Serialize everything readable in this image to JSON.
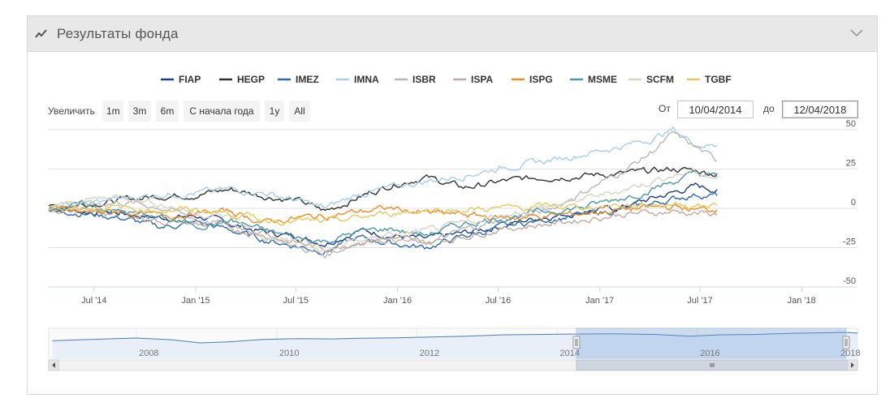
{
  "panel": {
    "title": "Результаты фонда",
    "header_icon": "line-chart-icon",
    "collapse_icon": "chevron-down-icon"
  },
  "range_selector": {
    "zoom_label": "Увеличить",
    "buttons": [
      "1m",
      "3m",
      "6m",
      "С начала года",
      "1y",
      "All"
    ],
    "from_label": "От",
    "from_value": "10/04/2014",
    "to_label": "до",
    "to_value": "12/04/2018"
  },
  "chart_data": {
    "type": "line",
    "x_range": [
      "2014-04-10",
      "2018-04-12"
    ],
    "x_ticks": [
      "Jul '14",
      "Jan '15",
      "Jul '15",
      "Jan '16",
      "Jul '16",
      "Jan '17",
      "Jul '17",
      "Jan '18"
    ],
    "x_tick_dates": [
      "2014-07-01",
      "2015-01-01",
      "2015-07-01",
      "2016-01-01",
      "2016-07-01",
      "2017-01-01",
      "2017-07-01",
      "2018-01-01"
    ],
    "y_ticks": [
      50,
      25,
      0,
      -25,
      -50
    ],
    "ylim": [
      -50,
      50
    ],
    "grid": true,
    "legend_position": "top",
    "series": [
      {
        "name": "FIAP",
        "color": "#1f3c88",
        "values": [
          [
            0,
            0
          ],
          [
            60,
            -2
          ],
          [
            130,
            -3
          ],
          [
            200,
            -6
          ],
          [
            270,
            -5
          ],
          [
            330,
            -10
          ],
          [
            390,
            -15
          ],
          [
            450,
            -18
          ],
          [
            500,
            -22
          ],
          [
            560,
            -14
          ],
          [
            620,
            -17
          ],
          [
            680,
            -20
          ],
          [
            750,
            -16
          ],
          [
            820,
            -11
          ],
          [
            900,
            -5
          ],
          [
            970,
            -2
          ],
          [
            1030,
            0
          ],
          [
            1080,
            5
          ],
          [
            1130,
            10
          ],
          [
            1170,
            14
          ],
          [
            1209,
            12
          ]
        ]
      },
      {
        "name": "HEGP",
        "color": "#333333",
        "values": [
          [
            0,
            0
          ],
          [
            60,
            3
          ],
          [
            130,
            5
          ],
          [
            200,
            8
          ],
          [
            270,
            9
          ],
          [
            330,
            12
          ],
          [
            390,
            8
          ],
          [
            450,
            5
          ],
          [
            500,
            -2
          ],
          [
            560,
            7
          ],
          [
            620,
            15
          ],
          [
            680,
            20
          ],
          [
            750,
            13
          ],
          [
            820,
            17
          ],
          [
            900,
            20
          ],
          [
            970,
            21
          ],
          [
            1030,
            22
          ],
          [
            1080,
            23
          ],
          [
            1130,
            25
          ],
          [
            1170,
            24
          ],
          [
            1209,
            22
          ]
        ]
      },
      {
        "name": "IMEZ",
        "color": "#2b6cb0",
        "values": [
          [
            0,
            0
          ],
          [
            60,
            -3
          ],
          [
            130,
            -6
          ],
          [
            200,
            -12
          ],
          [
            270,
            -9
          ],
          [
            330,
            -14
          ],
          [
            390,
            -20
          ],
          [
            450,
            -24
          ],
          [
            500,
            -27
          ],
          [
            560,
            -19
          ],
          [
            620,
            -22
          ],
          [
            680,
            -25
          ],
          [
            750,
            -18
          ],
          [
            820,
            -12
          ],
          [
            900,
            -7
          ],
          [
            970,
            -4
          ],
          [
            1030,
            -1
          ],
          [
            1080,
            2
          ],
          [
            1130,
            6
          ],
          [
            1170,
            9
          ],
          [
            1209,
            8
          ]
        ]
      },
      {
        "name": "IMNA",
        "color": "#a6cfe8",
        "values": [
          [
            0,
            0
          ],
          [
            60,
            3
          ],
          [
            130,
            6
          ],
          [
            200,
            9
          ],
          [
            270,
            10
          ],
          [
            330,
            12
          ],
          [
            390,
            10
          ],
          [
            450,
            5
          ],
          [
            500,
            0
          ],
          [
            560,
            9
          ],
          [
            620,
            13
          ],
          [
            680,
            17
          ],
          [
            750,
            21
          ],
          [
            820,
            26
          ],
          [
            900,
            30
          ],
          [
            970,
            35
          ],
          [
            1030,
            39
          ],
          [
            1080,
            43
          ],
          [
            1130,
            50
          ],
          [
            1170,
            41
          ],
          [
            1209,
            40
          ]
        ]
      },
      {
        "name": "ISBR",
        "color": "#b8b8b8",
        "values": [
          [
            0,
            0
          ],
          [
            60,
            2
          ],
          [
            130,
            4
          ],
          [
            200,
            1
          ],
          [
            270,
            -7
          ],
          [
            330,
            -11
          ],
          [
            390,
            -15
          ],
          [
            450,
            -25
          ],
          [
            500,
            -30
          ],
          [
            560,
            -21
          ],
          [
            620,
            -19
          ],
          [
            680,
            -23
          ],
          [
            750,
            -14
          ],
          [
            820,
            -7
          ],
          [
            900,
            -2
          ],
          [
            970,
            11
          ],
          [
            1030,
            22
          ],
          [
            1080,
            33
          ],
          [
            1130,
            47
          ],
          [
            1170,
            39
          ],
          [
            1209,
            30
          ]
        ]
      },
      {
        "name": "ISPA",
        "color": "#c2aa9e",
        "values": [
          [
            0,
            0
          ],
          [
            60,
            -2
          ],
          [
            130,
            -3
          ],
          [
            200,
            -8
          ],
          [
            270,
            -10
          ],
          [
            330,
            -13
          ],
          [
            390,
            -17
          ],
          [
            450,
            -22
          ],
          [
            500,
            -26
          ],
          [
            560,
            -21
          ],
          [
            620,
            -19
          ],
          [
            680,
            -22
          ],
          [
            750,
            -18
          ],
          [
            820,
            -13
          ],
          [
            900,
            -10
          ],
          [
            970,
            -7
          ],
          [
            1030,
            -4
          ],
          [
            1080,
            -3
          ],
          [
            1130,
            -2
          ],
          [
            1170,
            -3
          ],
          [
            1209,
            -4
          ]
        ]
      },
      {
        "name": "ISPG",
        "color": "#f08a24",
        "values": [
          [
            0,
            0
          ],
          [
            60,
            -3
          ],
          [
            130,
            -2
          ],
          [
            200,
            -5
          ],
          [
            270,
            -3
          ],
          [
            330,
            -2
          ],
          [
            390,
            -9
          ],
          [
            450,
            -6
          ],
          [
            500,
            -5
          ],
          [
            560,
            -2
          ],
          [
            620,
            0
          ],
          [
            680,
            -3
          ],
          [
            750,
            -4
          ],
          [
            820,
            -6
          ],
          [
            900,
            -5
          ],
          [
            970,
            -3
          ],
          [
            1030,
            -1
          ],
          [
            1080,
            0
          ],
          [
            1130,
            1
          ],
          [
            1170,
            -1
          ],
          [
            1209,
            -1
          ]
        ]
      },
      {
        "name": "MSME",
        "color": "#4a9aa5",
        "values": [
          [
            0,
            0
          ],
          [
            60,
            2
          ],
          [
            130,
            -2
          ],
          [
            200,
            -6
          ],
          [
            270,
            -11
          ],
          [
            330,
            -8
          ],
          [
            390,
            -14
          ],
          [
            450,
            -19
          ],
          [
            500,
            -21
          ],
          [
            560,
            -15
          ],
          [
            620,
            -13
          ],
          [
            680,
            -17
          ],
          [
            750,
            -10
          ],
          [
            820,
            -6
          ],
          [
            900,
            -2
          ],
          [
            970,
            1
          ],
          [
            1030,
            6
          ],
          [
            1080,
            11
          ],
          [
            1130,
            17
          ],
          [
            1170,
            22
          ],
          [
            1209,
            20
          ]
        ]
      },
      {
        "name": "SCFM",
        "color": "#d8d3c3",
        "values": [
          [
            0,
            0
          ],
          [
            60,
            5
          ],
          [
            130,
            8
          ],
          [
            200,
            3
          ],
          [
            270,
            -3
          ],
          [
            330,
            -6
          ],
          [
            390,
            -19
          ],
          [
            450,
            -21
          ],
          [
            500,
            -28
          ],
          [
            560,
            -20
          ],
          [
            620,
            -17
          ],
          [
            680,
            -15
          ],
          [
            750,
            -10
          ],
          [
            820,
            -4
          ],
          [
            900,
            1
          ],
          [
            970,
            6
          ],
          [
            1030,
            11
          ],
          [
            1080,
            16
          ],
          [
            1130,
            21
          ],
          [
            1170,
            23
          ],
          [
            1209,
            19
          ]
        ]
      },
      {
        "name": "TGBF",
        "color": "#e6c95c",
        "values": [
          [
            0,
            0
          ],
          [
            60,
            1
          ],
          [
            130,
            0
          ],
          [
            200,
            -1
          ],
          [
            270,
            -1
          ],
          [
            330,
            -3
          ],
          [
            390,
            -7
          ],
          [
            450,
            -8
          ],
          [
            500,
            -9
          ],
          [
            560,
            -6
          ],
          [
            620,
            -3
          ],
          [
            680,
            -1
          ],
          [
            750,
            -1
          ],
          [
            820,
            0
          ],
          [
            900,
            1
          ],
          [
            970,
            1
          ],
          [
            1030,
            2
          ],
          [
            1080,
            2
          ],
          [
            1130,
            3
          ],
          [
            1170,
            2
          ],
          [
            1209,
            2
          ]
        ]
      }
    ],
    "navigator": {
      "x_ticks": [
        "2008",
        "2010",
        "2012",
        "2014",
        "2016",
        "2018"
      ],
      "x_tick_dates": [
        "2008-01-01",
        "2010-01-01",
        "2012-01-01",
        "2014-01-01",
        "2016-01-01",
        "2018-01-01"
      ],
      "x_range": [
        "2006-10-01",
        "2018-04-12"
      ],
      "selected": [
        "2014-04-10",
        "2018-04-12"
      ],
      "series_values": [
        [
          2006.8,
          60
        ],
        [
          2007.2,
          65
        ],
        [
          2007.7,
          70
        ],
        [
          2008.0,
          73
        ],
        [
          2008.5,
          65
        ],
        [
          2008.9,
          50
        ],
        [
          2009.3,
          55
        ],
        [
          2009.8,
          66
        ],
        [
          2010.3,
          70
        ],
        [
          2010.8,
          69
        ],
        [
          2011.2,
          72
        ],
        [
          2011.7,
          74
        ],
        [
          2012.2,
          78
        ],
        [
          2012.7,
          82
        ],
        [
          2013.2,
          88
        ],
        [
          2013.7,
          90
        ],
        [
          2014.2,
          92
        ],
        [
          2014.8,
          93
        ],
        [
          2015.4,
          90
        ],
        [
          2015.9,
          82
        ],
        [
          2016.3,
          88
        ],
        [
          2016.8,
          90
        ],
        [
          2017.3,
          95
        ],
        [
          2017.8,
          98
        ],
        [
          2018.1,
          100
        ],
        [
          2018.28,
          96
        ]
      ]
    }
  }
}
